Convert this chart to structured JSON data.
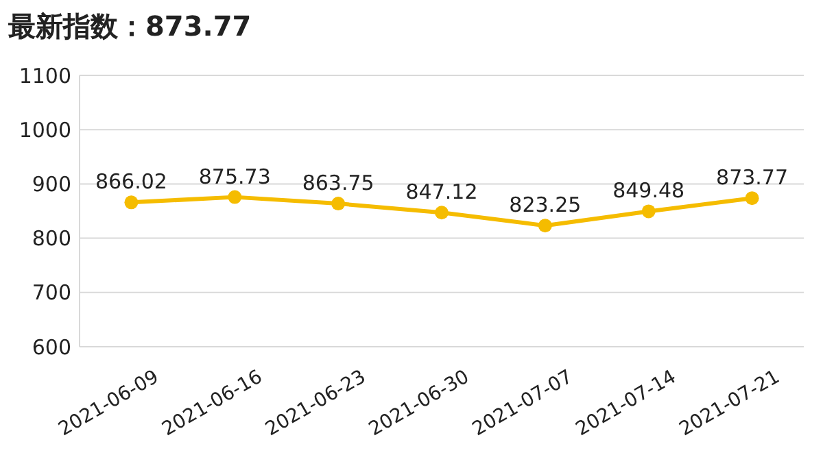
{
  "chart_data": {
    "type": "line",
    "title": "最新指数：873.77",
    "categories": [
      "2021-06-09",
      "2021-06-16",
      "2021-06-23",
      "2021-06-30",
      "2021-07-07",
      "2021-07-14",
      "2021-07-21"
    ],
    "series": [
      {
        "color": "#f5bc00",
        "values": [
          866.02,
          875.73,
          863.75,
          847.12,
          823.25,
          849.48,
          873.77
        ]
      }
    ],
    "ylim": [
      600,
      1100
    ],
    "yticks": [
      600,
      700,
      800,
      900,
      1000,
      1100
    ],
    "grid": "y",
    "marker": "circle",
    "data_labels": true
  }
}
